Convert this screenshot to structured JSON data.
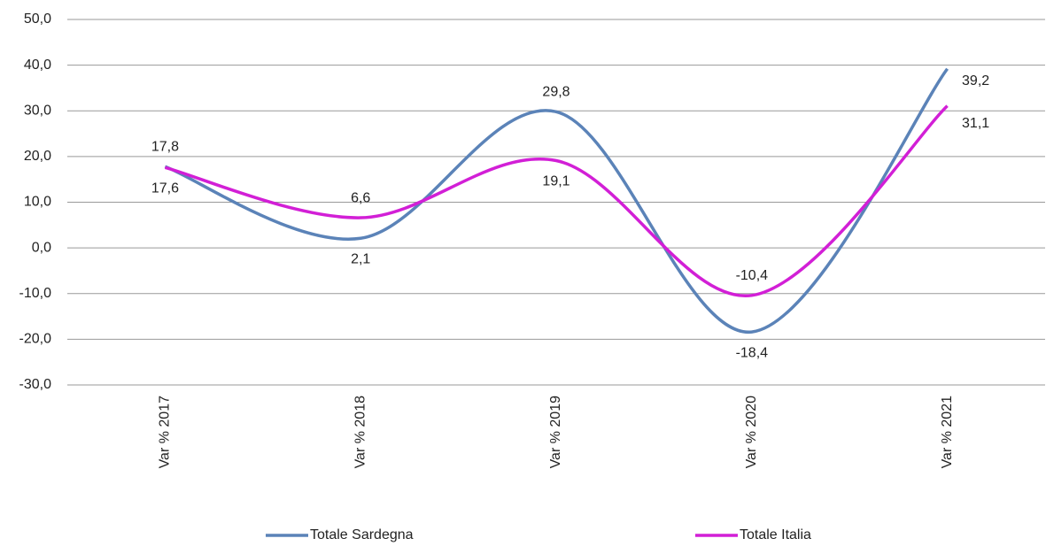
{
  "chart_data": {
    "type": "line",
    "categories": [
      "Var % 2017",
      "Var % 2018",
      "Var % 2019",
      "Var % 2020",
      "Var % 2021"
    ],
    "series": [
      {
        "name": "Totale Sardegna",
        "color": "#5b83b8",
        "values": [
          17.8,
          2.1,
          29.8,
          -18.4,
          39.2
        ],
        "value_labels": [
          "17,8",
          "2,1",
          "29,8",
          "-18,4",
          "39,2"
        ]
      },
      {
        "name": "Totale Italia",
        "color": "#d21fd6",
        "values": [
          17.6,
          6.6,
          19.1,
          -10.4,
          31.1
        ],
        "value_labels": [
          "17,6",
          "6,6",
          "19,1",
          "-10,4",
          "31,1"
        ]
      }
    ],
    "ylim": [
      -30,
      50
    ],
    "yticks": [
      {
        "value": -30,
        "label": "-30,0"
      },
      {
        "value": -20,
        "label": "-20,0"
      },
      {
        "value": -10,
        "label": "-10,0"
      },
      {
        "value": 0,
        "label": "0,0"
      },
      {
        "value": 10,
        "label": "10,0"
      },
      {
        "value": 20,
        "label": "20,0"
      },
      {
        "value": 30,
        "label": "30,0"
      },
      {
        "value": 40,
        "label": "40,0"
      },
      {
        "value": 50,
        "label": "50,0"
      }
    ],
    "grid": true
  }
}
